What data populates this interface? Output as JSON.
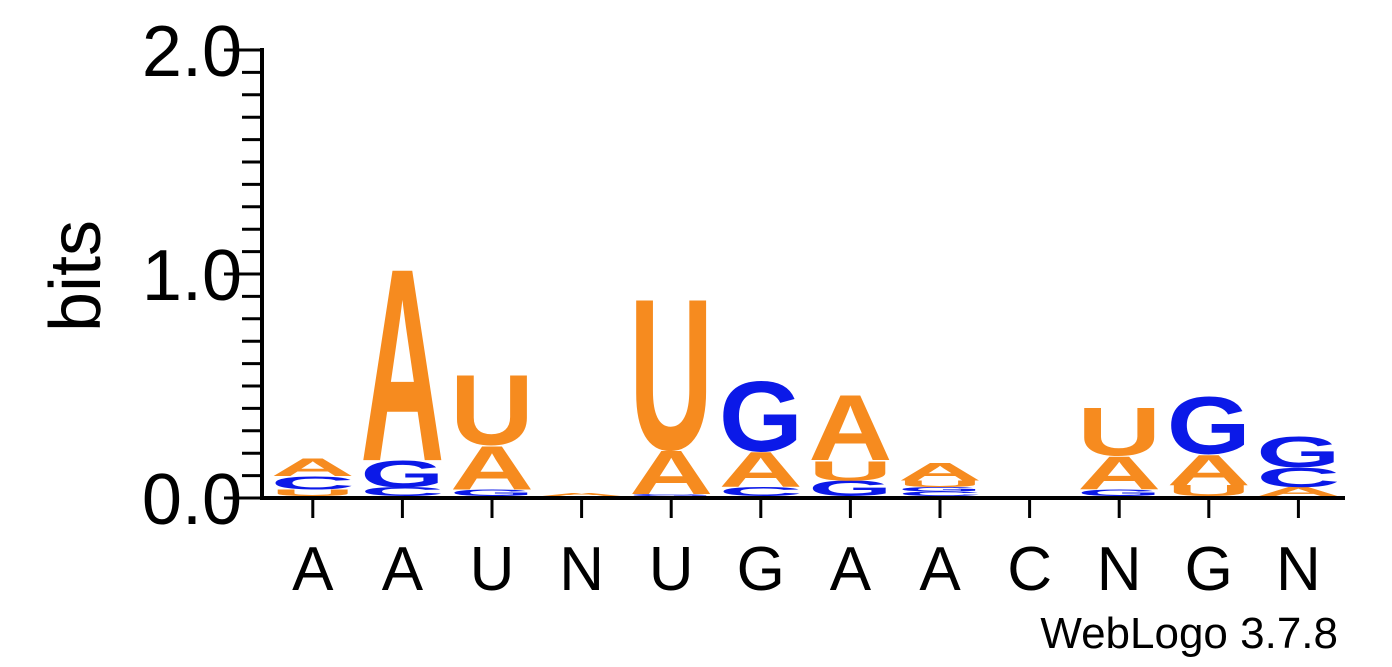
{
  "chart_data": {
    "type": "sequence-logo",
    "ylabel": "bits",
    "ylim": [
      0,
      2.0
    ],
    "ytick_labels": [
      "0.0",
      "1.0",
      "2.0"
    ],
    "credit": "WebLogo 3.7.8",
    "colors": {
      "A": "#f68b1f",
      "U": "#f68b1f",
      "G": "#0b19e8",
      "C": "#0b19e8"
    },
    "positions": [
      {
        "label": "A",
        "stack": [
          {
            "letter": "U",
            "value": 0.03
          },
          {
            "letter": "C",
            "value": 0.06
          },
          {
            "letter": "A",
            "value": 0.08
          }
        ]
      },
      {
        "label": "A",
        "stack": [
          {
            "letter": "C",
            "value": 0.04
          },
          {
            "letter": "G",
            "value": 0.12
          },
          {
            "letter": "A",
            "value": 0.88
          }
        ]
      },
      {
        "label": "U",
        "stack": [
          {
            "letter": "G",
            "value": 0.03
          },
          {
            "letter": "A",
            "value": 0.2
          },
          {
            "letter": "U",
            "value": 0.32
          }
        ]
      },
      {
        "label": "N",
        "stack": [
          {
            "letter": "A",
            "value": 0.015
          }
        ]
      },
      {
        "label": "U",
        "stack": [
          {
            "letter": "G",
            "value": 0.01
          },
          {
            "letter": "A",
            "value": 0.2
          },
          {
            "letter": "U",
            "value": 0.69
          }
        ]
      },
      {
        "label": "G",
        "stack": [
          {
            "letter": "C",
            "value": 0.04
          },
          {
            "letter": "A",
            "value": 0.16
          },
          {
            "letter": "G",
            "value": 0.32
          }
        ]
      },
      {
        "label": "A",
        "stack": [
          {
            "letter": "G",
            "value": 0.07
          },
          {
            "letter": "U",
            "value": 0.09
          },
          {
            "letter": "A",
            "value": 0.3
          }
        ]
      },
      {
        "label": "A",
        "stack": [
          {
            "letter": "C",
            "value": 0.02
          },
          {
            "letter": "G",
            "value": 0.02
          },
          {
            "letter": "U",
            "value": 0.03
          },
          {
            "letter": "A",
            "value": 0.08
          }
        ]
      },
      {
        "label": "C",
        "stack": []
      },
      {
        "label": "N",
        "stack": [
          {
            "letter": "G",
            "value": 0.03
          },
          {
            "letter": "A",
            "value": 0.15
          },
          {
            "letter": "U",
            "value": 0.22
          }
        ]
      },
      {
        "label": "G",
        "stack": [
          {
            "letter": "U",
            "value": 0.05
          },
          {
            "letter": "A",
            "value": 0.14
          },
          {
            "letter": "G",
            "value": 0.26
          }
        ]
      },
      {
        "label": "N",
        "stack": [
          {
            "letter": "A",
            "value": 0.04
          },
          {
            "letter": "C",
            "value": 0.09
          },
          {
            "letter": "G",
            "value": 0.14
          }
        ]
      }
    ]
  }
}
